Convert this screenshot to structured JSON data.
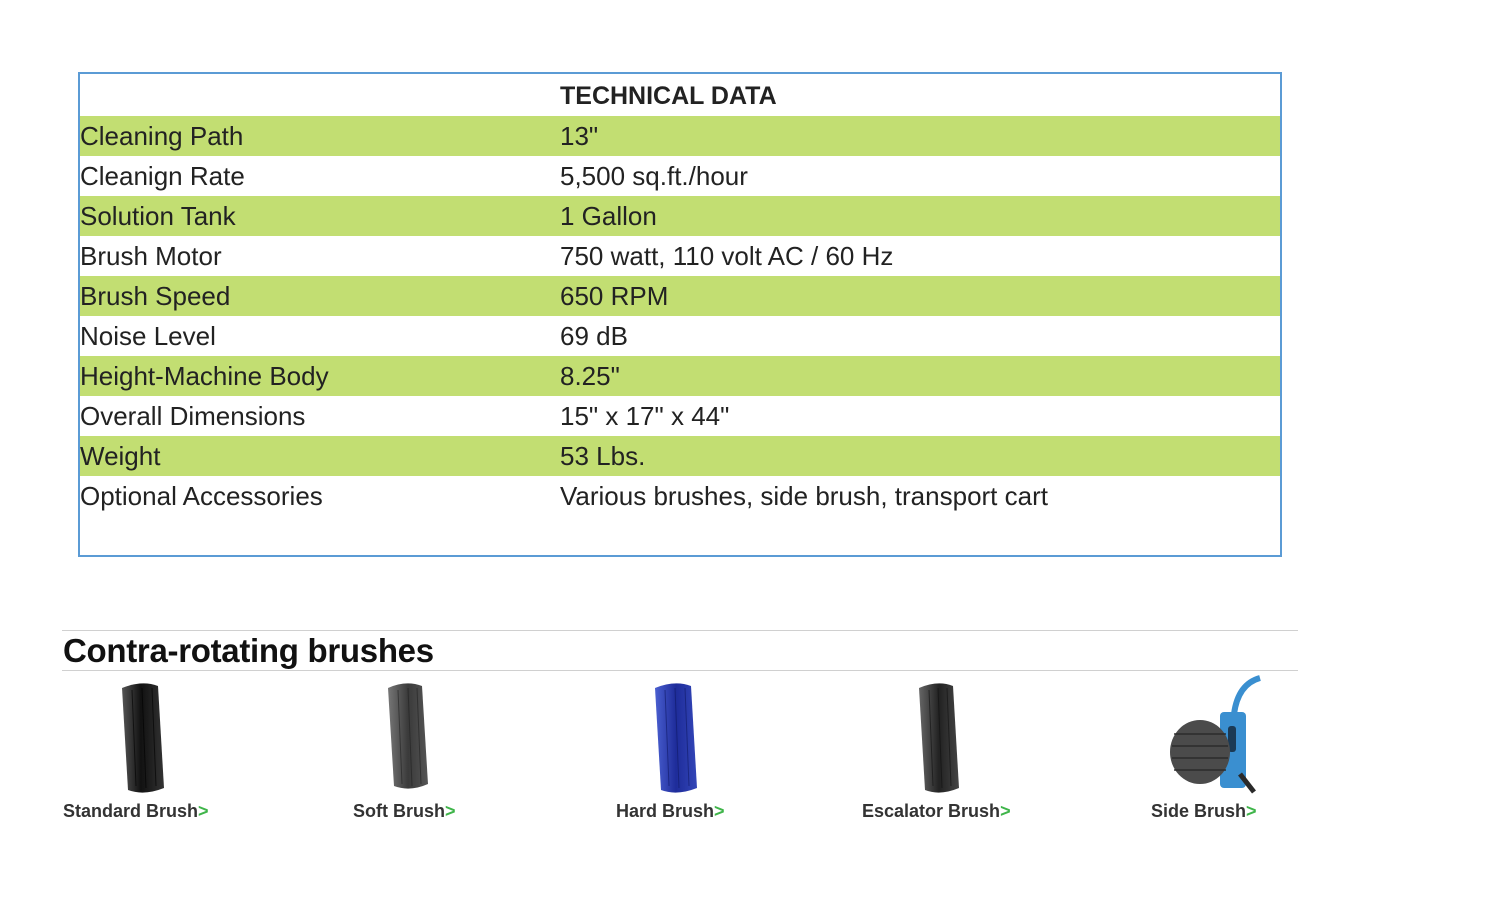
{
  "technical_data": {
    "title": "TECHNICAL DATA",
    "rows": [
      {
        "label": "Cleaning Path",
        "value": "13\""
      },
      {
        "label": "Cleanign Rate",
        "value": "5,500 sq.ft./hour"
      },
      {
        "label": "Solution Tank",
        "value": "1 Gallon"
      },
      {
        "label": "Brush Motor",
        "value": "750 watt, 110 volt AC / 60 Hz"
      },
      {
        "label": "Brush Speed",
        "value": "650 RPM"
      },
      {
        "label": "Noise Level",
        "value": "69 dB"
      },
      {
        "label": "Height-Machine Body",
        "value": "8.25\""
      },
      {
        "label": "Overall Dimensions",
        "value": "15\" x 17\" x 44\""
      },
      {
        "label": "Weight",
        "value": "53 Lbs."
      },
      {
        "label": "Optional Accessories",
        "value": "Various brushes, side brush, transport cart"
      }
    ],
    "colors": {
      "stripe": "#c2de72",
      "border": "#5b9bd5"
    }
  },
  "brushes": {
    "heading": "Contra-rotating brushes",
    "arrow": ">",
    "items": [
      {
        "label": "Standard Brush",
        "color": "#1a1a1a"
      },
      {
        "label": "Soft Brush",
        "color": "#3a3a3a"
      },
      {
        "label": "Hard Brush",
        "color": "#2436a8"
      },
      {
        "label": "Escalator Brush",
        "color": "#2e2e2e"
      },
      {
        "label": "Side Brush",
        "color": "#3a8fd0"
      }
    ]
  }
}
